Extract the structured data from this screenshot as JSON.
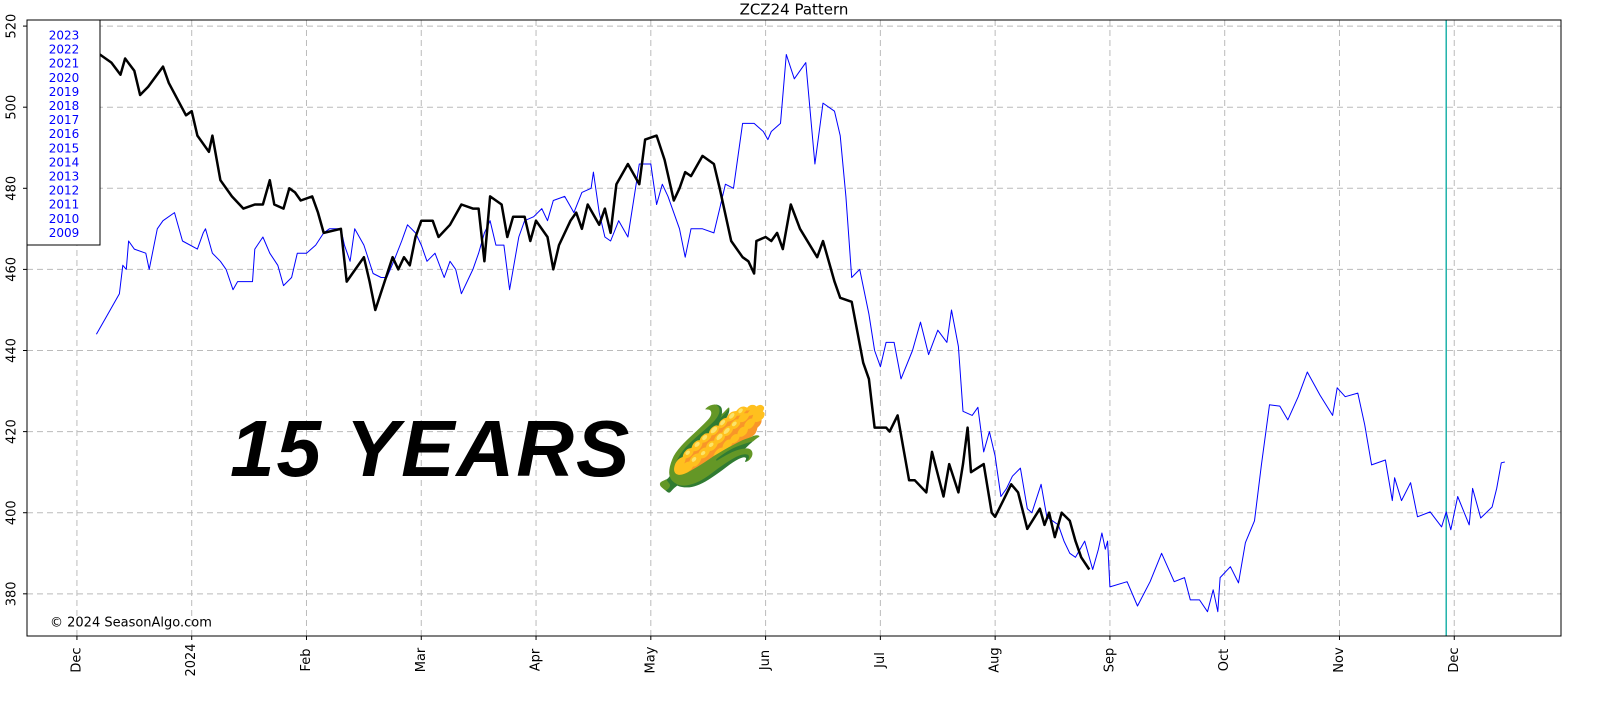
{
  "chart_data": {
    "type": "line",
    "title": "ZCZ24  Pattern",
    "annotations": [
      "15 YEARS 🌽",
      "© 2024 SeasonAlgo.com"
    ],
    "legend": [
      "2023",
      "2022",
      "2021",
      "2020",
      "2019",
      "2018",
      "2017",
      "2016",
      "2015",
      "2014",
      "2013",
      "2012",
      "2011",
      "2010",
      "2009"
    ],
    "xlim": [
      -0.435,
      12.93
    ],
    "ylim": [
      369.6,
      521.5
    ],
    "xticks": [
      {
        "value": 0,
        "label": "Dec"
      },
      {
        "value": 1,
        "label": "2024"
      },
      {
        "value": 2,
        "label": "Feb"
      },
      {
        "value": 3,
        "label": "Mar"
      },
      {
        "value": 4,
        "label": "Apr"
      },
      {
        "value": 5,
        "label": "May"
      },
      {
        "value": 6,
        "label": "Jun"
      },
      {
        "value": 7,
        "label": "Jul"
      },
      {
        "value": 8,
        "label": "Aug"
      },
      {
        "value": 9,
        "label": "Sep"
      },
      {
        "value": 10,
        "label": "Oct"
      },
      {
        "value": 11,
        "label": "Nov"
      },
      {
        "value": 12,
        "label": "Dec"
      }
    ],
    "yticks": [
      380,
      400,
      420,
      440,
      460,
      480,
      500,
      520
    ],
    "grid": true,
    "vline": {
      "value": 11.93,
      "color": "#20b2aa"
    },
    "series": [
      {
        "color": "#0000ff",
        "width": 1,
        "x": [
          0.17,
          0.25,
          0.37,
          0.4,
          0.43,
          0.45,
          0.5,
          0.6,
          0.63,
          0.7,
          0.75,
          0.85,
          0.88,
          0.92,
          1.05,
          1.1,
          1.12,
          1.18,
          1.25,
          1.3,
          1.36,
          1.4,
          1.53,
          1.55,
          1.62,
          1.68,
          1.75,
          1.8,
          1.87,
          1.92,
          2.0,
          2.08,
          2.15,
          2.2,
          2.3,
          2.33,
          2.38,
          2.42,
          2.5,
          2.58,
          2.65,
          2.7,
          2.76,
          2.83,
          2.88,
          2.95,
          3.0,
          3.05,
          3.12,
          3.2,
          3.25,
          3.3,
          3.35,
          3.45,
          3.5,
          3.55,
          3.6,
          3.65,
          3.72,
          3.77,
          3.85,
          3.9,
          3.98,
          4.05,
          4.1,
          4.15,
          4.25,
          4.33,
          4.4,
          4.48,
          4.5,
          4.55,
          4.6,
          4.65,
          4.72,
          4.8,
          4.9,
          5.0,
          5.05,
          5.1,
          5.15,
          5.25,
          5.3,
          5.35,
          5.45,
          5.55,
          5.6,
          5.65,
          5.72,
          5.75,
          5.8,
          5.9,
          5.98,
          6.02,
          6.05,
          6.13,
          6.18,
          6.25,
          6.35,
          6.43,
          6.5,
          6.6,
          6.65,
          6.7,
          6.75,
          6.82,
          6.9,
          6.95,
          7.0,
          7.05,
          7.12,
          7.18,
          7.28,
          7.35,
          7.42,
          7.5,
          7.58,
          7.62,
          7.68,
          7.72,
          7.8,
          7.85,
          7.9,
          7.95,
          8.0,
          8.05,
          8.1,
          8.15,
          8.22,
          8.28,
          8.32,
          8.4,
          8.45,
          8.55,
          8.6,
          8.65,
          8.7,
          8.78,
          8.85,
          8.9,
          8.93,
          8.96,
          8.98,
          9.0,
          9.15,
          9.24,
          9.35,
          9.45,
          9.56,
          9.65,
          9.7,
          9.78,
          9.85,
          9.9,
          9.94,
          9.96,
          10.05,
          10.12,
          10.18,
          10.26,
          10.32,
          10.39,
          10.48,
          10.55,
          10.64,
          10.72,
          10.83,
          10.94,
          10.98,
          11.05,
          11.16,
          11.22,
          11.28,
          11.4,
          11.46,
          11.48,
          11.54,
          11.62,
          11.68,
          11.79,
          11.89,
          11.93,
          11.97,
          12.03,
          12.13,
          12.16,
          12.23,
          12.33,
          12.37,
          12.41,
          12.44
        ],
        "values": [
          444,
          448,
          454,
          461,
          460,
          467,
          465,
          464,
          460,
          470,
          472,
          474,
          471,
          467,
          465,
          469,
          470,
          464,
          462,
          460,
          455,
          457,
          457,
          465,
          468,
          464,
          461,
          456,
          458,
          464,
          464,
          466,
          469,
          470,
          470,
          466,
          462,
          470,
          466,
          459,
          458,
          458,
          462,
          467,
          471,
          469,
          466,
          462,
          464,
          458,
          462,
          460,
          454,
          460,
          464,
          469,
          472,
          466,
          466,
          455,
          468,
          472,
          473,
          475,
          472,
          477,
          478,
          474,
          479,
          480,
          484,
          474,
          468,
          467,
          472,
          468,
          486,
          486,
          476,
          481,
          478,
          470,
          463,
          470,
          470,
          469,
          475,
          481,
          480,
          486,
          496,
          496,
          494,
          492,
          494,
          496,
          513,
          507,
          511,
          486,
          501,
          499,
          493,
          478,
          458,
          460,
          449,
          440,
          436,
          442,
          442,
          433,
          440,
          447,
          439,
          445,
          442,
          450,
          441,
          425,
          424,
          426,
          415,
          420,
          414,
          404,
          406,
          409,
          411,
          401,
          400,
          407,
          399,
          397,
          393,
          390,
          389,
          393,
          386,
          391,
          395,
          391,
          393,
          381.7,
          383,
          377,
          383,
          390,
          383,
          384,
          378.5,
          378.5,
          375.6,
          381,
          375.6,
          384,
          386.7,
          382.7,
          392.6,
          398,
          411.8,
          426.6,
          426.3,
          422.9,
          428.6,
          434.7,
          429,
          424,
          430.8,
          428.6,
          429.5,
          421.7,
          411.8,
          413,
          403,
          408.6,
          403,
          407.4,
          399,
          400.2,
          396.5,
          400.2,
          395.8,
          404,
          397,
          406,
          398.7,
          401.4,
          406,
          412.3,
          412.5
        ]
      },
      {
        "color": "#000000",
        "width": 2.5,
        "x": [
          0.2,
          0.3,
          0.38,
          0.42,
          0.5,
          0.55,
          0.62,
          0.75,
          0.8,
          0.95,
          1.0,
          1.05,
          1.15,
          1.18,
          1.25,
          1.35,
          1.45,
          1.55,
          1.62,
          1.68,
          1.72,
          1.8,
          1.85,
          1.9,
          1.95,
          2.05,
          2.1,
          2.15,
          2.3,
          2.35,
          2.4,
          2.5,
          2.55,
          2.6,
          2.75,
          2.8,
          2.85,
          2.9,
          2.95,
          3.0,
          3.1,
          3.15,
          3.25,
          3.35,
          3.45,
          3.5,
          3.55,
          3.6,
          3.7,
          3.75,
          3.8,
          3.9,
          3.95,
          4.0,
          4.1,
          4.15,
          4.2,
          4.3,
          4.35,
          4.4,
          4.45,
          4.55,
          4.6,
          4.65,
          4.7,
          4.8,
          4.9,
          4.95,
          5.05,
          5.12,
          5.2,
          5.25,
          5.3,
          5.35,
          5.45,
          5.55,
          5.6,
          5.7,
          5.8,
          5.85,
          5.9,
          5.92,
          6.0,
          6.05,
          6.1,
          6.15,
          6.22,
          6.3,
          6.45,
          6.5,
          6.6,
          6.65,
          6.75,
          6.85,
          6.9,
          6.95,
          7.05,
          7.08,
          7.15,
          7.2,
          7.25,
          7.3,
          7.4,
          7.45,
          7.55,
          7.6,
          7.68,
          7.72,
          7.76,
          7.79,
          7.9,
          7.97,
          8.0,
          8.07,
          8.14,
          8.2,
          8.28,
          8.39,
          8.43,
          8.47,
          8.52,
          8.58,
          8.65,
          8.7,
          8.75,
          8.82
        ],
        "values": [
          513,
          511,
          508,
          512,
          509,
          503,
          505,
          510,
          506,
          498,
          499,
          493,
          489,
          493,
          482,
          478,
          475,
          476,
          476,
          482,
          476,
          475,
          480,
          479,
          477,
          478,
          474,
          469,
          470,
          457,
          459,
          463,
          457,
          450,
          463,
          460,
          463,
          461,
          468,
          472,
          472,
          468,
          471,
          476,
          475,
          475,
          462,
          478,
          476,
          468,
          473,
          473,
          467,
          472,
          468,
          460,
          466,
          472,
          474,
          470,
          476,
          471,
          475,
          469,
          481,
          486,
          481,
          492,
          493,
          487,
          477,
          480,
          484,
          483,
          488,
          486,
          480,
          467,
          463,
          462,
          459,
          467,
          468,
          467,
          469,
          465,
          476,
          470,
          463,
          467,
          457,
          453,
          452,
          437,
          433,
          421,
          421,
          420,
          424,
          416,
          408,
          408,
          405,
          415,
          404,
          412,
          405,
          412,
          421,
          410,
          412,
          400,
          399,
          403,
          407,
          405,
          396,
          401,
          397,
          400,
          394,
          400,
          398,
          393,
          389,
          386
        ]
      }
    ]
  }
}
